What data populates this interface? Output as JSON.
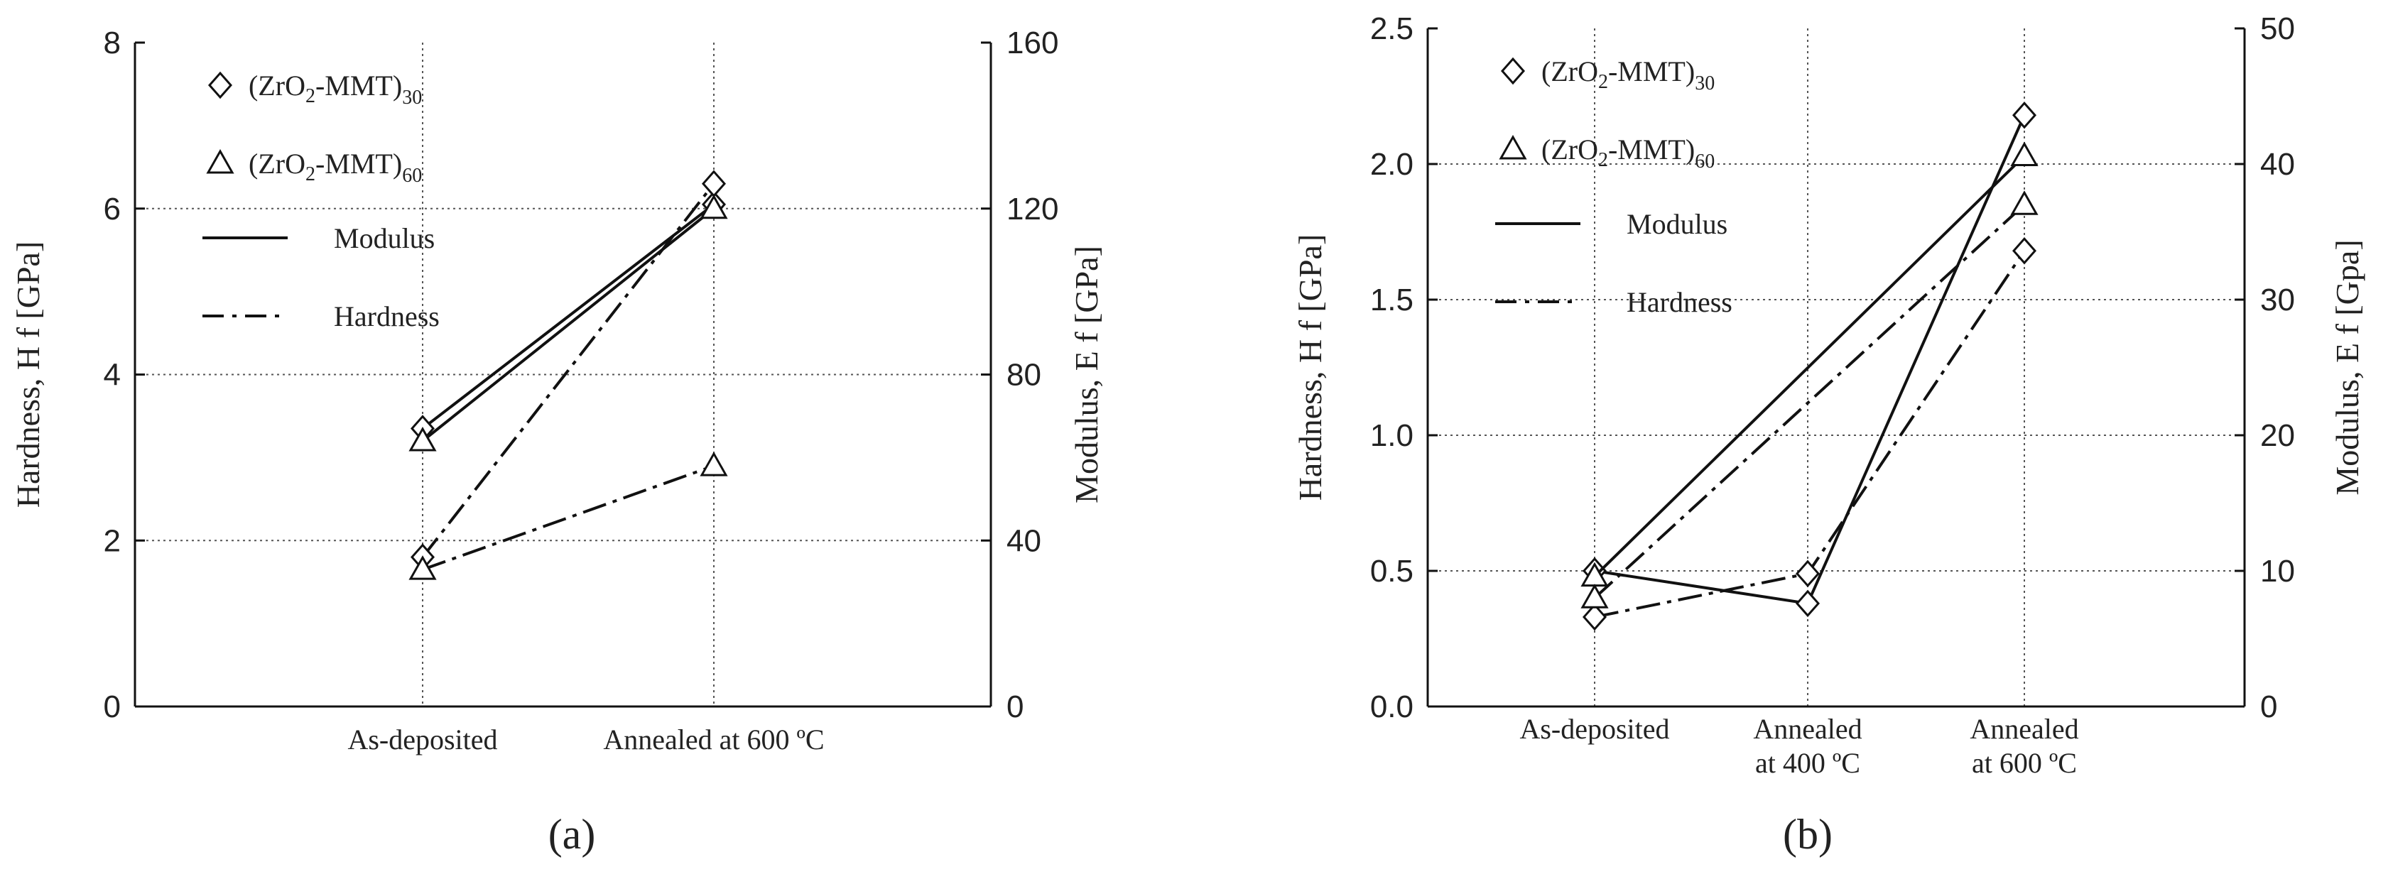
{
  "chart_data": [
    {
      "type": "line",
      "panel_label": "(a)",
      "categories": [
        "As-deposited",
        "Annealed at 600 ºC"
      ],
      "ylabel_left": "Hardness, H f [GPa]",
      "ylabel_right": "Modulus, E f [GPa]",
      "ylim_left": [
        0,
        8
      ],
      "ylim_right": [
        0,
        160
      ],
      "yticks_left": [
        0,
        2,
        4,
        6,
        8
      ],
      "yticks_right": [
        0,
        40,
        80,
        120,
        160
      ],
      "grid": true,
      "legend_position": "top-left",
      "legend": {
        "markers": [
          {
            "symbol": "diamond",
            "label": "(ZrO2-MMT)30"
          },
          {
            "symbol": "triangle",
            "label": "(ZrO2-MMT)60"
          }
        ],
        "lines": [
          {
            "style": "solid",
            "label": "Modulus"
          },
          {
            "style": "dashdot",
            "label": "Hardness"
          }
        ]
      },
      "series": [
        {
          "marker": "diamond",
          "line": "solid",
          "axis": "right",
          "values": [
            67,
            121
          ]
        },
        {
          "marker": "triangle",
          "line": "solid",
          "axis": "right",
          "values": [
            64,
            120
          ]
        },
        {
          "marker": "diamond",
          "line": "dashdot",
          "axis": "left",
          "values": [
            1.8,
            6.3
          ]
        },
        {
          "marker": "triangle",
          "line": "dashdot",
          "axis": "left",
          "values": [
            1.65,
            2.9
          ]
        }
      ]
    },
    {
      "type": "line",
      "panel_label": "(b)",
      "categories": [
        "As-deposited",
        "Annealed at 400 ºC",
        "Annealed at 600 ºC"
      ],
      "ylabel_left": "Hardness, H f [GPa]",
      "ylabel_right": "Modulus, E f [Gpa]",
      "ylim_left": [
        0,
        2.5
      ],
      "ylim_right": [
        0,
        50
      ],
      "yticks_left": [
        0.0,
        0.5,
        1.0,
        1.5,
        2.0,
        2.5
      ],
      "yticks_right": [
        0,
        10,
        20,
        30,
        40,
        50
      ],
      "grid": true,
      "legend_position": "top-left",
      "legend": {
        "markers": [
          {
            "symbol": "diamond",
            "label": "(ZrO2-MMT)30"
          },
          {
            "symbol": "triangle",
            "label": "(ZrO2-MMT)60"
          }
        ],
        "lines": [
          {
            "style": "solid",
            "label": "Modulus"
          },
          {
            "style": "dashdot",
            "label": "Hardness"
          }
        ]
      },
      "series": [
        {
          "marker": "diamond",
          "line": "solid",
          "axis": "right",
          "values": [
            10,
            7.6,
            43.6
          ]
        },
        {
          "marker": "triangle",
          "line": "solid",
          "axis": "right",
          "values": [
            9.6,
            null,
            40.6
          ]
        },
        {
          "marker": "diamond",
          "line": "dashdot",
          "axis": "left",
          "values": [
            0.33,
            0.49,
            1.68
          ]
        },
        {
          "marker": "triangle",
          "line": "dashdot",
          "axis": "left",
          "values": [
            0.4,
            null,
            1.85
          ]
        }
      ]
    }
  ]
}
